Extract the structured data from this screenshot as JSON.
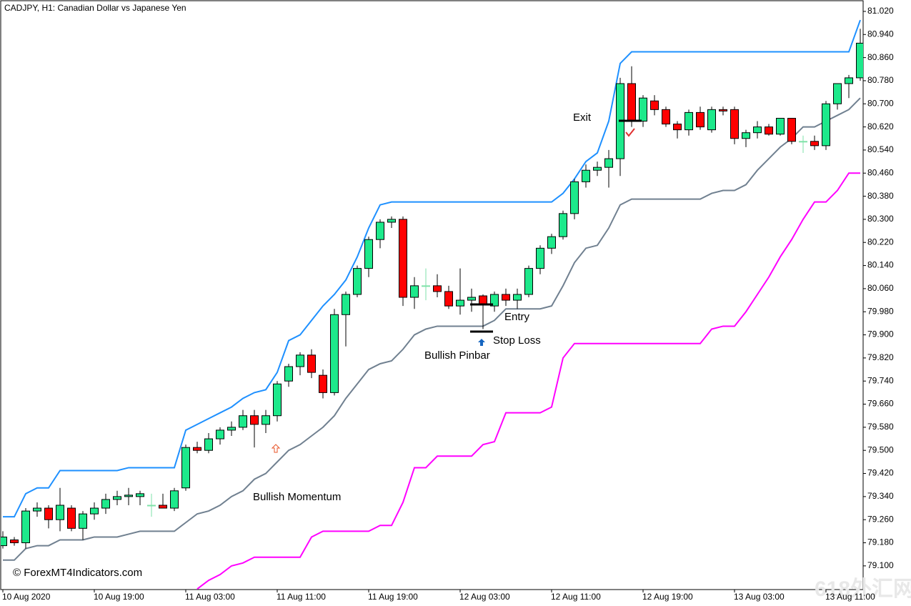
{
  "chart_data": {
    "type": "candlestick",
    "title": "CADJPY, H1:  Canadian Dollar vs Japanese Yen",
    "categories": [
      "10 Aug 2020",
      null,
      null,
      null,
      null,
      null,
      null,
      null,
      "10 Aug 19:00",
      null,
      null,
      null,
      null,
      null,
      null,
      null,
      "11 Aug 03:00",
      null,
      null,
      null,
      null,
      null,
      null,
      null,
      "11 Aug 11:00",
      null,
      null,
      null,
      null,
      null,
      null,
      null,
      "11 Aug 19:00",
      null,
      null,
      null,
      null,
      null,
      null,
      null,
      "12 Aug 03:00",
      null,
      null,
      null,
      null,
      null,
      null,
      null,
      "12 Aug 11:00",
      null,
      null,
      null,
      null,
      null,
      null,
      null,
      "12 Aug 19:00",
      null,
      null,
      null,
      null,
      null,
      null,
      null,
      "13 Aug 03:00",
      null,
      null,
      null,
      null,
      null,
      null,
      null,
      "13 Aug 11:00",
      null,
      null,
      null
    ],
    "open": [
      79.17,
      79.19,
      79.18,
      79.29,
      79.3,
      79.26,
      79.3,
      79.23,
      79.28,
      79.3,
      79.33,
      79.34,
      79.34,
      79.31,
      79.31,
      79.3,
      79.37,
      79.51,
      79.5,
      79.54,
      79.57,
      79.58,
      79.62,
      79.59,
      79.62,
      79.74,
      79.79,
      79.83,
      79.76,
      79.7,
      79.97,
      80.04,
      80.13,
      80.23,
      80.29,
      80.3,
      80.03,
      80.07,
      80.07,
      80.05,
      80.0,
      80.02,
      80.035,
      80.0,
      80.04,
      80.02,
      80.04,
      80.13,
      80.2,
      80.24,
      80.32,
      80.43,
      80.47,
      80.48,
      80.51,
      80.77,
      80.64,
      80.71,
      80.68,
      80.63,
      80.61,
      80.67,
      80.61,
      80.68,
      80.68,
      80.58,
      80.6,
      80.62,
      80.595,
      80.65,
      80.57,
      80.57,
      80.555,
      80.7,
      80.77,
      80.79
    ],
    "high": [
      79.22,
      79.2,
      79.3,
      79.32,
      79.31,
      79.37,
      79.31,
      79.29,
      79.32,
      79.35,
      79.36,
      79.37,
      79.36,
      79.35,
      79.35,
      79.37,
      79.52,
      79.53,
      79.56,
      79.58,
      79.6,
      79.64,
      79.64,
      79.64,
      79.74,
      79.8,
      79.84,
      79.85,
      79.78,
      79.99,
      80.05,
      80.14,
      80.24,
      80.3,
      80.31,
      80.31,
      80.1,
      80.13,
      80.11,
      80.07,
      80.13,
      80.06,
      80.04,
      80.05,
      80.06,
      80.06,
      80.14,
      80.21,
      80.25,
      80.33,
      80.44,
      80.49,
      80.5,
      80.54,
      80.79,
      80.83,
      80.73,
      80.73,
      80.69,
      80.64,
      80.68,
      80.69,
      80.69,
      80.69,
      80.69,
      80.61,
      80.64,
      80.63,
      80.65,
      80.65,
      80.59,
      80.59,
      80.71,
      80.77,
      80.8,
      80.96
    ],
    "low": [
      79.16,
      79.17,
      79.16,
      79.27,
      79.23,
      79.22,
      79.22,
      79.19,
      79.26,
      79.28,
      79.31,
      79.31,
      79.31,
      79.27,
      79.3,
      79.29,
      79.36,
      79.49,
      79.49,
      79.52,
      79.55,
      79.57,
      79.51,
      79.56,
      79.6,
      79.72,
      79.76,
      79.75,
      79.68,
      79.69,
      79.86,
      80.03,
      80.1,
      80.2,
      80.27,
      80.0,
      79.99,
      80.02,
      80.03,
      79.99,
      79.97,
      79.98,
      79.92,
      79.98,
      80.0,
      79.99,
      80.03,
      80.11,
      80.18,
      80.23,
      80.3,
      80.41,
      80.45,
      80.41,
      80.45,
      80.62,
      80.62,
      80.66,
      80.62,
      80.58,
      80.59,
      80.61,
      80.6,
      80.66,
      80.56,
      80.55,
      80.58,
      80.59,
      80.59,
      80.56,
      80.53,
      80.54,
      80.54,
      80.68,
      80.72,
      80.78
    ],
    "close": [
      79.2,
      79.18,
      79.29,
      79.3,
      79.26,
      79.31,
      79.23,
      79.28,
      79.3,
      79.33,
      79.34,
      79.345,
      79.35,
      79.31,
      79.3,
      79.36,
      79.51,
      79.5,
      79.54,
      79.57,
      79.58,
      79.62,
      79.59,
      79.62,
      79.73,
      79.79,
      79.83,
      79.77,
      79.7,
      79.97,
      80.04,
      80.13,
      80.23,
      80.29,
      80.3,
      80.03,
      80.07,
      80.07,
      80.05,
      80.0,
      80.02,
      80.03,
      80.005,
      80.04,
      80.02,
      80.04,
      80.13,
      80.2,
      80.24,
      80.32,
      80.43,
      80.47,
      80.48,
      80.51,
      80.77,
      80.64,
      80.72,
      80.68,
      80.63,
      80.61,
      80.67,
      80.62,
      80.68,
      80.675,
      80.58,
      80.6,
      80.62,
      80.595,
      80.65,
      80.57,
      80.57,
      80.555,
      80.7,
      80.77,
      80.79,
      80.91
    ],
    "up_color": "#1de98b",
    "down_color": "#ff0000",
    "doji_color": "#7ee2a8",
    "lines": [
      {
        "color": "#1e90ff",
        "values": [
          79.27,
          79.27,
          79.35,
          79.37,
          79.37,
          79.43,
          79.43,
          79.43,
          79.43,
          79.43,
          79.43,
          79.44,
          79.44,
          79.44,
          79.44,
          79.44,
          79.57,
          79.59,
          79.61,
          79.63,
          79.65,
          79.68,
          79.7,
          79.71,
          79.77,
          79.88,
          79.9,
          79.95,
          80.0,
          80.04,
          80.09,
          80.17,
          80.27,
          80.35,
          80.36,
          80.36,
          80.36,
          80.36,
          80.36,
          80.36,
          80.36,
          80.36,
          80.36,
          80.36,
          80.36,
          80.36,
          80.36,
          80.36,
          80.36,
          80.39,
          80.44,
          80.5,
          80.53,
          80.64,
          80.84,
          80.88,
          80.88,
          80.88,
          80.88,
          80.88,
          80.88,
          80.88,
          80.88,
          80.88,
          80.88,
          80.88,
          80.88,
          80.88,
          80.88,
          80.88,
          80.88,
          80.88,
          80.88,
          80.88,
          80.88,
          80.99
        ]
      },
      {
        "color": "#708090",
        "values": [
          79.12,
          79.12,
          79.16,
          79.17,
          79.17,
          79.19,
          79.19,
          79.19,
          79.2,
          79.2,
          79.2,
          79.21,
          79.22,
          79.22,
          79.22,
          79.22,
          79.25,
          79.28,
          79.29,
          79.31,
          79.34,
          79.36,
          79.4,
          79.42,
          79.46,
          79.5,
          79.52,
          79.55,
          79.58,
          79.62,
          79.68,
          79.73,
          79.78,
          79.8,
          79.81,
          79.85,
          79.9,
          79.92,
          79.93,
          79.93,
          79.93,
          79.93,
          79.93,
          79.95,
          79.99,
          79.99,
          79.99,
          79.99,
          80.0,
          80.07,
          80.15,
          80.2,
          80.21,
          80.27,
          80.35,
          80.37,
          80.37,
          80.37,
          80.37,
          80.37,
          80.37,
          80.37,
          80.39,
          80.4,
          80.4,
          80.42,
          80.47,
          80.51,
          80.55,
          80.58,
          80.62,
          80.62,
          80.64,
          80.66,
          80.68,
          80.72
        ]
      },
      {
        "color": "#ff00ff",
        "values": [
          null,
          null,
          null,
          null,
          null,
          null,
          null,
          null,
          null,
          null,
          null,
          null,
          null,
          null,
          null,
          null,
          null,
          79.02,
          79.05,
          79.07,
          79.1,
          79.11,
          79.13,
          79.13,
          79.13,
          79.13,
          79.13,
          79.2,
          79.22,
          79.22,
          79.22,
          79.22,
          79.22,
          79.24,
          79.24,
          79.32,
          79.44,
          79.44,
          79.48,
          79.48,
          79.48,
          79.48,
          79.52,
          79.53,
          79.63,
          79.63,
          79.63,
          79.63,
          79.65,
          79.82,
          79.87,
          79.87,
          79.87,
          79.87,
          79.87,
          79.87,
          79.87,
          79.87,
          79.87,
          79.87,
          79.87,
          79.87,
          79.92,
          79.93,
          79.93,
          79.98,
          80.04,
          80.1,
          80.17,
          80.23,
          80.3,
          80.36,
          80.36,
          80.4,
          80.46,
          80.46
        ]
      }
    ],
    "ylim": [
      79.018,
      81.057
    ],
    "yticks": [
      {
        "value": 79.1,
        "label": "79.100"
      },
      {
        "value": 79.18,
        "label": "79.180"
      },
      {
        "value": 79.26,
        "label": "79.260"
      },
      {
        "value": 79.34,
        "label": "79.340"
      },
      {
        "value": 79.42,
        "label": "79.420"
      },
      {
        "value": 79.5,
        "label": "79.500"
      },
      {
        "value": 79.58,
        "label": "79.580"
      },
      {
        "value": 79.66,
        "label": "79.660"
      },
      {
        "value": 79.74,
        "label": "79.740"
      },
      {
        "value": 79.82,
        "label": "79.820"
      },
      {
        "value": 79.9,
        "label": "79.900"
      },
      {
        "value": 79.98,
        "label": "79.980"
      },
      {
        "value": 80.06,
        "label": "80.060"
      },
      {
        "value": 80.14,
        "label": "80.140"
      },
      {
        "value": 80.22,
        "label": "80.220"
      },
      {
        "value": 80.3,
        "label": "80.300"
      },
      {
        "value": 80.38,
        "label": "80.380"
      },
      {
        "value": 80.46,
        "label": "80.460"
      },
      {
        "value": 80.54,
        "label": "80.540"
      },
      {
        "value": 80.62,
        "label": "80.620"
      },
      {
        "value": 80.7,
        "label": "80.700"
      },
      {
        "value": 80.78,
        "label": "80.780"
      },
      {
        "value": 80.86,
        "label": "80.860"
      },
      {
        "value": 80.94,
        "label": "80.940"
      },
      {
        "value": 81.02,
        "label": "81.020"
      }
    ],
    "annotations": [
      "Exit",
      "Entry",
      "Stop Loss",
      "Bullish Pinbar",
      "Bullish Momentum"
    ],
    "copyright": "© ForexMT4Indicators.com",
    "watermark": "618外汇网"
  }
}
